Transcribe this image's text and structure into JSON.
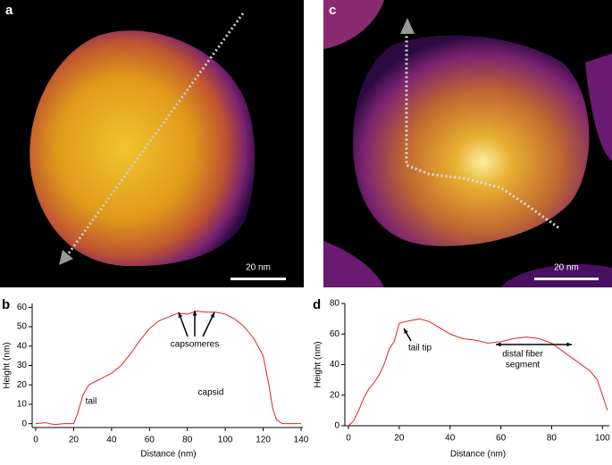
{
  "images": [
    {
      "label": "a",
      "scale_bar": "20 nm"
    },
    {
      "label": "c",
      "scale_bar": "20 nm"
    }
  ],
  "chart_data": [
    {
      "type": "line",
      "panel": "b",
      "x_label": "Distance (nm)",
      "y_label": "Height (nm)",
      "x": [
        0,
        5,
        10,
        15,
        20,
        22,
        25,
        28,
        32,
        36,
        40,
        45,
        50,
        55,
        60,
        65,
        70,
        75,
        80,
        85,
        90,
        95,
        100,
        105,
        110,
        115,
        120,
        123,
        125,
        127,
        130,
        135,
        140
      ],
      "values": [
        0,
        0.5,
        -0.5,
        0,
        0,
        5,
        15,
        20,
        22,
        24,
        26,
        30,
        36,
        43,
        49,
        53,
        55,
        57,
        56.5,
        58,
        57.5,
        57.5,
        56.5,
        54,
        50,
        44,
        35,
        20,
        8,
        2,
        0,
        0,
        0
      ],
      "color": "#e8211c",
      "xlim": [
        0,
        140
      ],
      "ylim": [
        -2,
        62
      ],
      "xticks": [
        0,
        20,
        40,
        60,
        80,
        100,
        120,
        140
      ],
      "yticks": [
        0,
        10,
        20,
        30,
        40,
        50,
        60
      ],
      "annotations": [
        "capsomeres",
        "tail",
        "capsid"
      ]
    },
    {
      "type": "line",
      "panel": "d",
      "x_label": "Distance (nm)",
      "y_label": "Height (nm)",
      "x": [
        0,
        2,
        4,
        6,
        8,
        10,
        12,
        14,
        16,
        18,
        20,
        22,
        25,
        28,
        32,
        36,
        40,
        45,
        50,
        55,
        60,
        65,
        70,
        75,
        80,
        85,
        90,
        95,
        98,
        100,
        102
      ],
      "values": [
        0,
        3,
        10,
        18,
        24,
        28,
        33,
        40,
        50,
        55,
        67,
        68,
        69,
        70,
        68,
        64,
        60,
        57,
        56,
        54,
        55,
        57,
        58,
        57,
        54,
        48,
        42,
        36,
        30,
        20,
        10
      ],
      "color": "#e8211c",
      "xlim": [
        0,
        102
      ],
      "ylim": [
        0,
        80
      ],
      "xticks": [
        0,
        20,
        40,
        60,
        80,
        100
      ],
      "yticks": [
        0,
        20,
        40,
        60,
        80
      ],
      "annotations": [
        "tail tip",
        "distal fiber",
        "segment"
      ]
    }
  ]
}
